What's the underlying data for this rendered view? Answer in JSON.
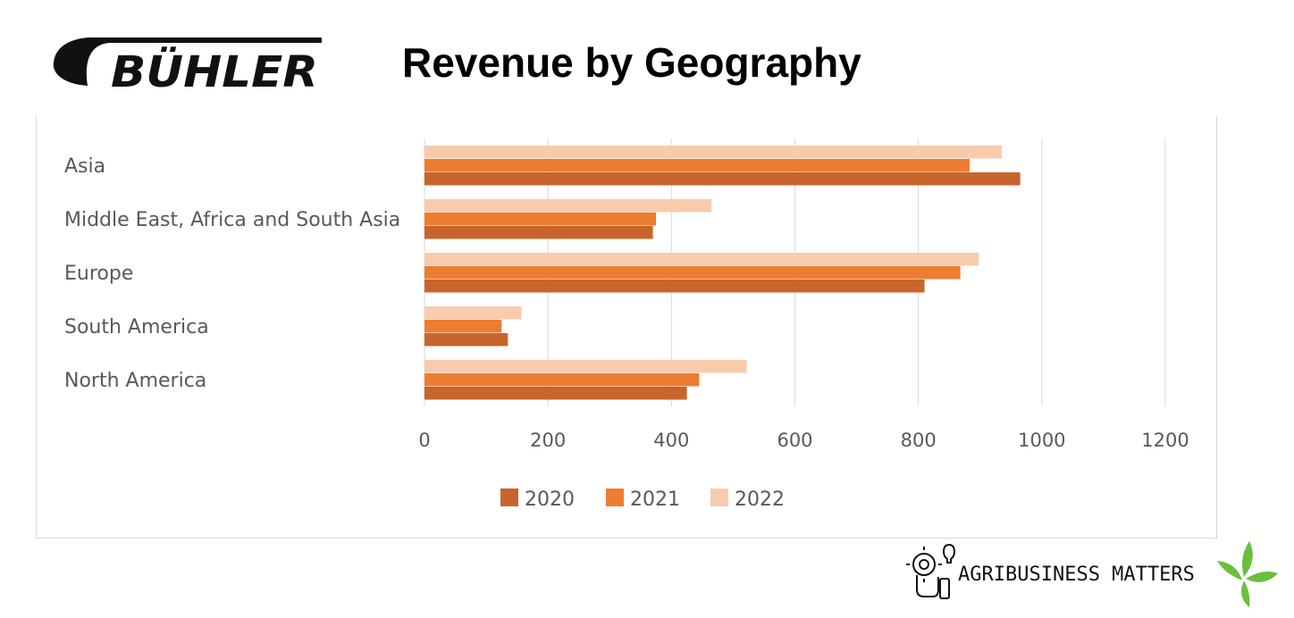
{
  "header": {
    "logo_text": "BÜHLER",
    "title": "Revenue by Geography"
  },
  "chart_data": {
    "type": "bar",
    "orientation": "horizontal",
    "title": "",
    "xlabel": "",
    "ylabel": "",
    "categories": [
      "Asia",
      "Middle East, Africa and South Asia",
      "Europe",
      "South America",
      "North America"
    ],
    "series": [
      {
        "name": "2020",
        "color": "#c8652c",
        "values": [
          965,
          370,
          810,
          135,
          425
        ]
      },
      {
        "name": "2021",
        "color": "#ed7d31",
        "values": [
          883,
          375,
          868,
          125,
          445
        ]
      },
      {
        "name": "2022",
        "color": "#f8cbad",
        "values": [
          935,
          465,
          898,
          157,
          522
        ]
      }
    ],
    "xlim": [
      0,
      1200
    ],
    "xticks": [
      "0",
      "200",
      "400",
      "600",
      "800",
      "1000",
      "1200"
    ],
    "grid": true,
    "legend_position": "bottom"
  },
  "footer": {
    "brand_text": "AGRIBUSINESS MATTERS"
  },
  "colors": {
    "text_gray": "#595959",
    "grid": "#d9d9d9",
    "leaf_green": "#6abf3c"
  },
  "icons": [
    "buhler-logo",
    "hand-gear-icon",
    "leaf-icon"
  ]
}
